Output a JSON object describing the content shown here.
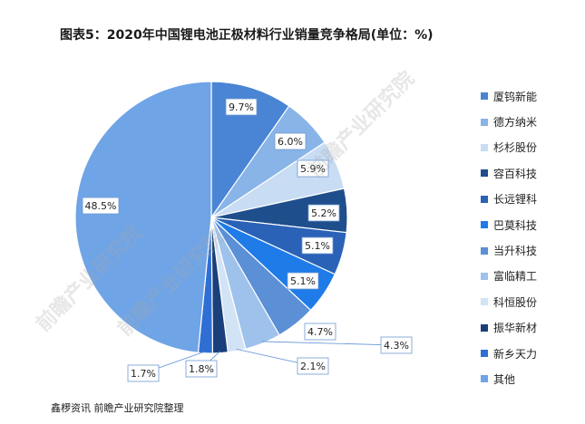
{
  "title": "图表5：2020年中国锂电池正极材料行业销量竞争格局(单位：%)",
  "source": "鑫椤资讯 前瞻产业研究院整理",
  "watermarks": [
    "前瞻产业研究院",
    "前瞻产业研究院",
    "前瞻产业研究院"
  ],
  "chart_data": {
    "type": "pie",
    "title": "图表5：2020年中国锂电池正极材料行业销量竞争格局(单位：%)",
    "unit": "%",
    "legend_position": "right",
    "slices": [
      {
        "name": "厦钨新能",
        "value": 9.7,
        "label": "9.7%",
        "color": "#4a84d4"
      },
      {
        "name": "德方纳米",
        "value": 6.0,
        "label": "6.0%",
        "color": "#88b4e8"
      },
      {
        "name": "杉杉股份",
        "value": 5.9,
        "label": "5.9%",
        "color": "#c8dcf4"
      },
      {
        "name": "容百科技",
        "value": 5.2,
        "label": "5.2%",
        "color": "#1f4e8c"
      },
      {
        "name": "长远锂科",
        "value": 5.1,
        "label": "5.1%",
        "color": "#2a62b8"
      },
      {
        "name": "巴莫科技",
        "value": 5.1,
        "label": "5.1%",
        "color": "#1e7be8"
      },
      {
        "name": "当升科技",
        "value": 4.7,
        "label": "4.7%",
        "color": "#5b8fd6"
      },
      {
        "name": "富临精工",
        "value": 4.3,
        "label": "4.3%",
        "color": "#9ec2ec"
      },
      {
        "name": "科恒股份",
        "value": 2.1,
        "label": "2.1%",
        "color": "#d2e3f6"
      },
      {
        "name": "振华新材",
        "value": 1.8,
        "label": "1.8%",
        "color": "#1a3f7a"
      },
      {
        "name": "新乡天力",
        "value": 1.7,
        "label": "1.7%",
        "color": "#2f6fd4"
      },
      {
        "name": "其他",
        "value": 48.5,
        "label": "48.5%",
        "color": "#6fa4e6"
      }
    ]
  }
}
